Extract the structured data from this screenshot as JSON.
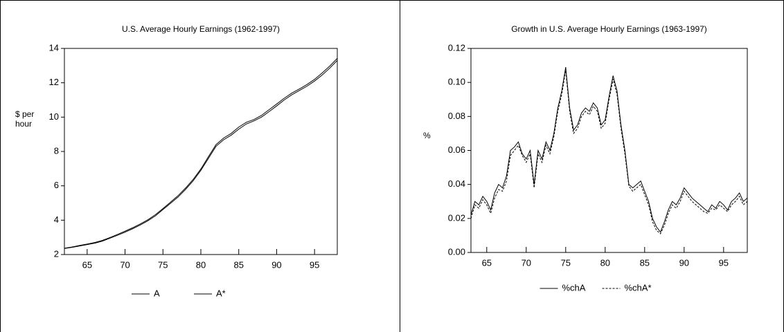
{
  "chart_data": [
    {
      "type": "line",
      "title": "U.S. Average Hourly Earnings (1962-1997)",
      "ylabel": "$ per hour",
      "x": [
        62,
        63,
        64,
        65,
        66,
        67,
        68,
        69,
        70,
        71,
        72,
        73,
        74,
        75,
        76,
        77,
        78,
        79,
        80,
        81,
        82,
        83,
        84,
        85,
        86,
        87,
        88,
        89,
        90,
        91,
        92,
        93,
        94,
        95,
        96,
        97,
        98
      ],
      "series": [
        {
          "name": "A",
          "color": "#000000",
          "dash": false,
          "values": [
            2.35,
            2.42,
            2.5,
            2.58,
            2.66,
            2.78,
            2.95,
            3.12,
            3.3,
            3.5,
            3.72,
            3.96,
            4.25,
            4.62,
            4.98,
            5.35,
            5.8,
            6.3,
            6.9,
            7.6,
            8.3,
            8.68,
            8.95,
            9.3,
            9.6,
            9.78,
            10.0,
            10.32,
            10.65,
            11.0,
            11.3,
            11.55,
            11.8,
            12.1,
            12.45,
            12.85,
            13.3
          ]
        },
        {
          "name": "A*",
          "color": "#000000",
          "dash": false,
          "values": [
            2.37,
            2.44,
            2.53,
            2.61,
            2.7,
            2.82,
            2.99,
            3.17,
            3.36,
            3.56,
            3.78,
            4.02,
            4.32,
            4.68,
            5.05,
            5.43,
            5.88,
            6.38,
            6.98,
            7.7,
            8.4,
            8.78,
            9.05,
            9.42,
            9.7,
            9.86,
            10.1,
            10.43,
            10.76,
            11.1,
            11.4,
            11.64,
            11.9,
            12.2,
            12.57,
            12.97,
            13.42
          ]
        }
      ],
      "xlim": [
        62,
        98
      ],
      "xticks": [
        65,
        70,
        75,
        80,
        85,
        90,
        95
      ],
      "ylim": [
        2,
        14
      ],
      "yticks": [
        2,
        4,
        6,
        8,
        10,
        12,
        14
      ],
      "grid": false,
      "legend": "bottom"
    },
    {
      "type": "line",
      "title": "Growth in U.S. Average Hourly Earnings (1963-1997)",
      "ylabel": "%",
      "x": [
        63,
        63.5,
        64,
        64.5,
        65,
        65.5,
        66,
        66.5,
        67,
        67.5,
        68,
        68.5,
        69,
        69.5,
        70,
        70.5,
        71,
        71.5,
        72,
        72.5,
        73,
        73.5,
        74,
        74.5,
        75,
        75.5,
        76,
        76.5,
        77,
        77.5,
        78,
        78.5,
        79,
        79.5,
        80,
        80.5,
        81,
        81.5,
        82,
        82.5,
        83,
        83.5,
        84,
        84.5,
        85,
        85.5,
        86,
        86.5,
        87,
        87.5,
        88,
        88.5,
        89,
        89.5,
        90,
        90.5,
        91,
        91.5,
        92,
        92.5,
        93,
        93.5,
        94,
        94.5,
        95,
        95.5,
        96,
        96.5,
        97,
        97.5,
        98
      ],
      "series": [
        {
          "name": "%chA",
          "color": "#000000",
          "dash": false,
          "values": [
            0.022,
            0.03,
            0.028,
            0.033,
            0.03,
            0.025,
            0.035,
            0.04,
            0.038,
            0.045,
            0.06,
            0.062,
            0.065,
            0.058,
            0.055,
            0.06,
            0.04,
            0.06,
            0.055,
            0.065,
            0.06,
            0.07,
            0.085,
            0.095,
            0.109,
            0.085,
            0.072,
            0.075,
            0.082,
            0.085,
            0.083,
            0.088,
            0.085,
            0.075,
            0.078,
            0.092,
            0.104,
            0.095,
            0.075,
            0.06,
            0.04,
            0.038,
            0.04,
            0.042,
            0.036,
            0.03,
            0.02,
            0.015,
            0.012,
            0.018,
            0.025,
            0.03,
            0.028,
            0.032,
            0.038,
            0.035,
            0.032,
            0.03,
            0.028,
            0.026,
            0.024,
            0.028,
            0.026,
            0.03,
            0.028,
            0.025,
            0.03,
            0.032,
            0.035,
            0.03,
            0.032
          ]
        },
        {
          "name": "%chA*",
          "color": "#000000",
          "dash": true,
          "values": [
            0.02,
            0.028,
            0.026,
            0.031,
            0.028,
            0.023,
            0.032,
            0.037,
            0.036,
            0.042,
            0.057,
            0.06,
            0.063,
            0.057,
            0.053,
            0.058,
            0.038,
            0.058,
            0.053,
            0.063,
            0.058,
            0.068,
            0.083,
            0.093,
            0.107,
            0.083,
            0.07,
            0.073,
            0.08,
            0.083,
            0.081,
            0.086,
            0.083,
            0.073,
            0.076,
            0.09,
            0.102,
            0.093,
            0.073,
            0.058,
            0.039,
            0.036,
            0.038,
            0.04,
            0.034,
            0.028,
            0.018,
            0.013,
            0.011,
            0.016,
            0.023,
            0.028,
            0.026,
            0.03,
            0.036,
            0.033,
            0.03,
            0.028,
            0.026,
            0.024,
            0.023,
            0.026,
            0.025,
            0.028,
            0.026,
            0.024,
            0.028,
            0.03,
            0.033,
            0.028,
            0.03
          ]
        }
      ],
      "xlim": [
        63,
        98
      ],
      "xticks": [
        65,
        70,
        75,
        80,
        85,
        90,
        95
      ],
      "ylim": [
        0,
        0.12
      ],
      "yticks": [
        {
          "value": 0,
          "label": "0.00"
        },
        0.02,
        0.04,
        0.06,
        0.08,
        {
          "value": 0.1,
          "label": "0.10"
        },
        0.12
      ],
      "grid": false,
      "legend": "bottom"
    }
  ]
}
